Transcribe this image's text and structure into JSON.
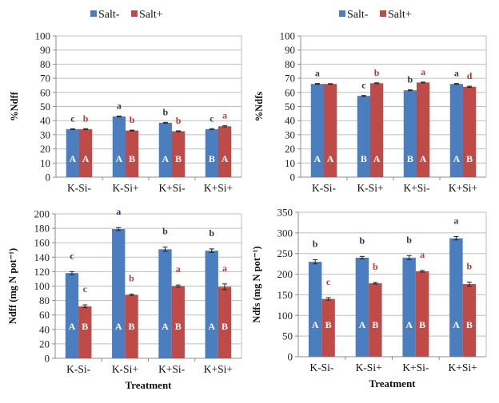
{
  "colors": {
    "salt_minus": "#4a7ebf",
    "salt_plus": "#be4b48",
    "letter_minus": "#1f3b6e",
    "letter_plus": "#c0392b",
    "grid": "#bfbfbf",
    "axis": "#8c8c8c"
  },
  "chart_data": [
    {
      "id": "pct-ndff",
      "type": "bar",
      "title": "",
      "legend": [
        "Salt-",
        "Salt+"
      ],
      "legend_position": "top",
      "ylabel": "%Ndff",
      "xlabel": "",
      "ylim": [
        0,
        100
      ],
      "yticks": [
        0,
        10,
        20,
        30,
        40,
        50,
        60,
        70,
        80,
        90,
        100
      ],
      "grid": true,
      "categories": [
        "K-Si-",
        "K-Si+",
        "K+Si-",
        "K+Si+"
      ],
      "series": [
        {
          "name": "Salt-",
          "values": [
            34,
            43,
            38.5,
            34
          ],
          "errors": [
            0.3,
            0.3,
            0.3,
            0.3
          ],
          "letters_top": [
            "c",
            "a",
            "b",
            "c"
          ],
          "letters_inner": [
            "A",
            "A",
            "A",
            "B"
          ]
        },
        {
          "name": "Salt+",
          "values": [
            34,
            33,
            32.5,
            36
          ],
          "errors": [
            0.3,
            0.3,
            0.3,
            0.4
          ],
          "letters_top": [
            "b",
            "b",
            "b",
            "a"
          ],
          "letters_inner": [
            "A",
            "B",
            "B",
            "A"
          ]
        }
      ]
    },
    {
      "id": "pct-ndfs",
      "type": "bar",
      "title": "",
      "legend": [
        "Salt-",
        "Salt+"
      ],
      "legend_position": "top",
      "ylabel": "%Ndfs",
      "xlabel": "",
      "ylim": [
        0,
        100
      ],
      "yticks": [
        0,
        10,
        20,
        30,
        40,
        50,
        60,
        70,
        80,
        90,
        100
      ],
      "grid": true,
      "categories": [
        "K-Si-",
        "K-Si+",
        "K+Si-",
        "K+Si+"
      ],
      "series": [
        {
          "name": "Salt-",
          "values": [
            66,
            57.5,
            61.5,
            66
          ],
          "errors": [
            0.3,
            0.3,
            0.3,
            0.3
          ],
          "letters_top": [
            "a",
            "c",
            "b",
            "a"
          ],
          "letters_inner": [
            "A",
            "B",
            "B",
            "A"
          ]
        },
        {
          "name": "Salt+",
          "values": [
            66,
            66.5,
            67,
            64
          ],
          "errors": [
            0.2,
            0.3,
            0.3,
            0.4
          ],
          "letters_top": [
            "",
            "b",
            "a",
            "d"
          ],
          "letters_inner": [
            "A",
            "A",
            "A",
            "B"
          ]
        }
      ]
    },
    {
      "id": "ndff",
      "type": "bar",
      "title": "",
      "ylabel": "Ndff (mg N pot⁻¹)",
      "xlabel": "Treatment",
      "ylim": [
        0,
        200
      ],
      "yticks": [
        0,
        20,
        40,
        60,
        80,
        100,
        120,
        140,
        160,
        180,
        200
      ],
      "grid": true,
      "categories": [
        "K-Si-",
        "K-Si+",
        "K+Si-",
        "K+Si+"
      ],
      "series": [
        {
          "name": "Salt-",
          "values": [
            118,
            179,
            151,
            149
          ],
          "errors": [
            2,
            2,
            3,
            2.5
          ],
          "letters_top": [
            "c",
            "a",
            "b",
            "b"
          ],
          "letters_inner": [
            "A",
            "A",
            "A",
            "A"
          ]
        },
        {
          "name": "Salt+",
          "values": [
            72,
            88,
            100,
            99
          ],
          "errors": [
            2,
            1,
            1.5,
            4
          ],
          "letters_top": [
            "c",
            "b",
            "a",
            "a"
          ],
          "letters_inner": [
            "B",
            "B",
            "B",
            "B"
          ]
        }
      ]
    },
    {
      "id": "ndfs",
      "type": "bar",
      "title": "",
      "ylabel": "Ndfs (mg N pot⁻¹)",
      "xlabel": "Treatment",
      "ylim": [
        0,
        350
      ],
      "yticks": [
        0,
        50,
        100,
        150,
        200,
        250,
        300,
        350
      ],
      "grid": true,
      "categories": [
        "K-Si-",
        "K-Si+",
        "K+Si-",
        "K+Si+"
      ],
      "series": [
        {
          "name": "Salt-",
          "values": [
            230,
            240,
            240,
            287
          ],
          "errors": [
            5,
            3,
            5,
            4
          ],
          "letters_top": [
            "b",
            "b",
            "b",
            "a"
          ],
          "letters_inner": [
            "A",
            "A",
            "A",
            "A"
          ]
        },
        {
          "name": "Salt+",
          "values": [
            140,
            178,
            207,
            176
          ],
          "errors": [
            3,
            2,
            2,
            5
          ],
          "letters_top": [
            "c",
            "b",
            "a",
            "b"
          ],
          "letters_inner": [
            "B",
            "B",
            "B",
            "B"
          ]
        }
      ]
    }
  ]
}
